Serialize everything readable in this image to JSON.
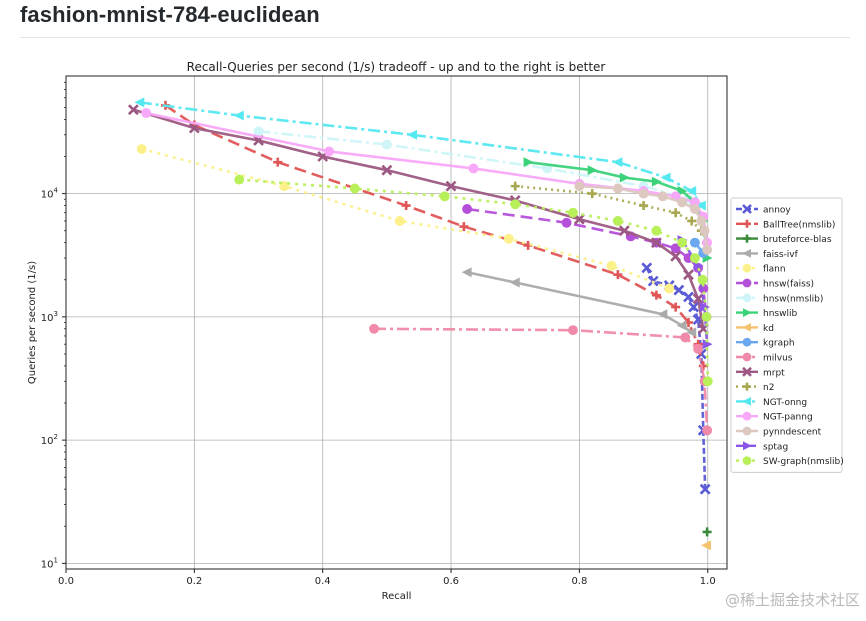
{
  "page": {
    "heading": "fashion-mnist-784-euclidean",
    "watermark": "@稀土掘金技术社区"
  },
  "chart_data": {
    "type": "line",
    "title": "Recall-Queries per second (1/s) tradeoff - up and to the right is better",
    "xlabel": "Recall",
    "ylabel": "Queries per second (1/s)",
    "xlim": [
      0.0,
      1.03
    ],
    "ylim": [
      9,
      90000
    ],
    "yscale": "log",
    "grid": true,
    "legend_position": "right",
    "x_ticks": [
      {
        "value": 0.0,
        "label": "0.0"
      },
      {
        "value": 0.2,
        "label": "0.2"
      },
      {
        "value": 0.4,
        "label": "0.4"
      },
      {
        "value": 0.6,
        "label": "0.6"
      },
      {
        "value": 0.8,
        "label": "0.8"
      },
      {
        "value": 1.0,
        "label": "1.0"
      }
    ],
    "y_ticks": [
      {
        "value": 10,
        "base": "10",
        "exp": "1"
      },
      {
        "value": 100,
        "base": "10",
        "exp": "2"
      },
      {
        "value": 1000,
        "base": "10",
        "exp": "3"
      },
      {
        "value": 10000,
        "base": "10",
        "exp": "4"
      }
    ],
    "series": [
      {
        "name": "annoy",
        "color": "#5a5ad6",
        "dash": "6,3",
        "marker": "x",
        "x": [
          0.905,
          0.915,
          0.94,
          0.955,
          0.97,
          0.978,
          0.985,
          0.99,
          0.993,
          0.996
        ],
        "y": [
          2500,
          1950,
          1800,
          1650,
          1450,
          1200,
          950,
          500,
          120,
          40
        ]
      },
      {
        "name": "BallTree(nmslib)",
        "color": "#e05555",
        "dash": "12,6",
        "marker": "plus",
        "x": [
          0.155,
          0.2,
          0.33,
          0.53,
          0.62,
          0.72,
          0.86,
          0.92,
          0.95,
          0.97,
          0.985,
          0.993
        ],
        "y": [
          52000,
          36000,
          18000,
          8000,
          5400,
          3800,
          2200,
          1500,
          1200,
          900,
          600,
          400
        ]
      },
      {
        "name": "bruteforce-blas",
        "color": "#3b8a3b",
        "dash": "",
        "marker": "plus",
        "x": [
          0.999
        ],
        "y": [
          18
        ]
      },
      {
        "name": "faiss-ivf",
        "color": "#aaaaaa",
        "dash": "",
        "marker": "triangle-left",
        "x": [
          0.625,
          0.7,
          0.93,
          0.96,
          0.975
        ],
        "y": [
          2300,
          1900,
          1050,
          850,
          750
        ]
      },
      {
        "name": "flann",
        "color": "#fbf08a",
        "dash": "3,5",
        "marker": "circle",
        "x": [
          0.118,
          0.34,
          0.52,
          0.69,
          0.85,
          0.94
        ],
        "y": [
          23000,
          11500,
          6000,
          4300,
          2600,
          1700
        ]
      },
      {
        "name": "hnsw(faiss)",
        "color": "#b44fd9",
        "dash": "12,6",
        "marker": "circle",
        "x": [
          0.625,
          0.78,
          0.88,
          0.92,
          0.95,
          0.97,
          0.985,
          0.993,
          0.998
        ],
        "y": [
          7500,
          5800,
          4500,
          4000,
          3600,
          3000,
          2500,
          1700,
          1000
        ]
      },
      {
        "name": "hnsw(nmslib)",
        "color": "#cff5f8",
        "dash": "12,4,3,4",
        "marker": "circle",
        "x": [
          0.3,
          0.5,
          0.75,
          0.9,
          0.97
        ],
        "y": [
          32000,
          25000,
          16000,
          11500,
          9000
        ]
      },
      {
        "name": "hnswlib",
        "color": "#3cd27a",
        "dash": "",
        "marker": "triangle-right",
        "x": [
          0.72,
          0.82,
          0.87,
          0.92,
          0.96,
          0.98,
          0.993,
          0.999
        ],
        "y": [
          18000,
          15500,
          13500,
          12500,
          10500,
          8500,
          6000,
          3000
        ]
      },
      {
        "name": "kd",
        "color": "#f5c370",
        "dash": "",
        "marker": "triangle-left",
        "x": [
          0.998
        ],
        "y": [
          14
        ]
      },
      {
        "name": "kgraph",
        "color": "#6aa8f0",
        "dash": "",
        "marker": "circle",
        "x": [
          0.98,
          0.993
        ],
        "y": [
          4000,
          3300
        ]
      },
      {
        "name": "milvus",
        "color": "#f08aa8",
        "dash": "12,4,3,4",
        "marker": "circle",
        "x": [
          0.48,
          0.79,
          0.965,
          0.985,
          0.995,
          0.999
        ],
        "y": [
          800,
          780,
          680,
          550,
          300,
          120
        ]
      },
      {
        "name": "mrpt",
        "color": "#9c5882",
        "dash": "",
        "marker": "x",
        "x": [
          0.105,
          0.2,
          0.3,
          0.4,
          0.5,
          0.6,
          0.7,
          0.8,
          0.87,
          0.92,
          0.95,
          0.97,
          0.985,
          0.993
        ],
        "y": [
          48000,
          34000,
          27000,
          20000,
          15500,
          11500,
          8800,
          6200,
          5000,
          4000,
          3100,
          2200,
          1400,
          800
        ]
      },
      {
        "name": "n2",
        "color": "#a8a850",
        "dash": "2,4",
        "marker": "plus",
        "x": [
          0.7,
          0.82,
          0.9,
          0.95,
          0.975,
          0.99,
          0.998
        ],
        "y": [
          11500,
          10000,
          8000,
          7000,
          6000,
          5000,
          4000
        ]
      },
      {
        "name": "NGT-onng",
        "color": "#55e8f0",
        "dash": "12,4,3,4",
        "marker": "triangle-left",
        "x": [
          0.115,
          0.27,
          0.54,
          0.86,
          0.935,
          0.975,
          0.99
        ],
        "y": [
          55000,
          43000,
          30000,
          18000,
          13500,
          10500,
          8000
        ]
      },
      {
        "name": "NGT-panng",
        "color": "#f8a8f8",
        "dash": "",
        "marker": "circle",
        "x": [
          0.125,
          0.41,
          0.635,
          0.8,
          0.9,
          0.95,
          0.98,
          0.993,
          0.999
        ],
        "y": [
          45000,
          22000,
          16000,
          12000,
          10500,
          9500,
          8500,
          6500,
          4000
        ]
      },
      {
        "name": "pynndescent",
        "color": "#ddc8c0",
        "dash": "",
        "marker": "circle",
        "x": [
          0.8,
          0.86,
          0.9,
          0.93,
          0.96,
          0.98,
          0.99,
          0.995,
          0.999
        ],
        "y": [
          11500,
          11000,
          10000,
          9500,
          8500,
          7500,
          6000,
          5000,
          3500
        ]
      },
      {
        "name": "sptag",
        "color": "#8a55e8",
        "dash": "8,4",
        "marker": "triangle-right",
        "x": [
          0.96,
          0.985,
          0.995,
          0.999
        ],
        "y": [
          4200,
          2600,
          1200,
          600
        ]
      },
      {
        "name": "SW-graph(nmslib)",
        "color": "#b8f05a",
        "dash": "3,5",
        "marker": "circle",
        "x": [
          0.27,
          0.45,
          0.59,
          0.7,
          0.79,
          0.86,
          0.92,
          0.96,
          0.98,
          0.992,
          0.998,
          1.0
        ],
        "y": [
          13000,
          11000,
          9500,
          8200,
          7000,
          6000,
          5000,
          4000,
          3000,
          2000,
          1000,
          300
        ]
      }
    ]
  }
}
